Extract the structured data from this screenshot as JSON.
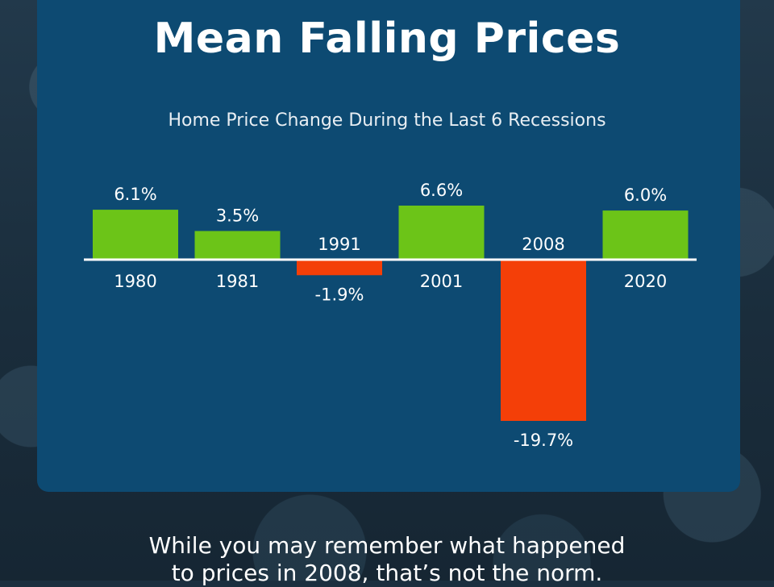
{
  "header": {
    "title": "Mean Falling Prices"
  },
  "chart_data": {
    "type": "bar",
    "title": "Home Price Change During the Last 6 Recessions",
    "categories": [
      "1980",
      "1981",
      "1991",
      "2001",
      "2008",
      "2020"
    ],
    "values": [
      6.1,
      3.5,
      -1.9,
      6.6,
      -19.7,
      6.0
    ],
    "value_labels": [
      "6.1%",
      "3.5%",
      "-1.9%",
      "6.6%",
      "-19.7%",
      "6.0%"
    ],
    "unit": "%",
    "xlabel": "",
    "ylabel": "",
    "grid": false,
    "colors": {
      "positive": "#6cc418",
      "negative": "#f43f08",
      "baseline": "#ffffff"
    }
  },
  "footer": {
    "line1": "While you may remember what happened",
    "line2": "to prices in 2008, that’s not the norm."
  }
}
